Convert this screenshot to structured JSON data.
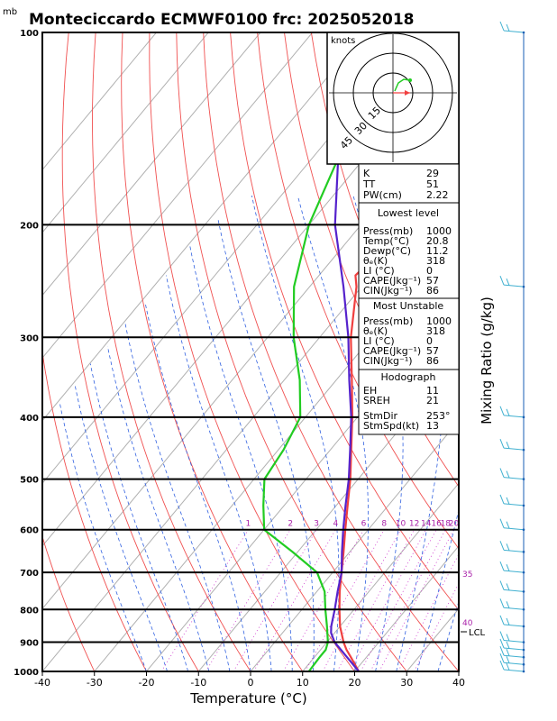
{
  "chart_data": {
    "type": "line",
    "title": "Monteciccardo ECMWF0100 frc: 2025052018",
    "pressure_unit": "mb",
    "xlabel": "Temperature (°C)",
    "right_label": "Mixing Ratio (g/kg)",
    "xlim": [
      -40,
      40
    ],
    "ylim": [
      1000,
      100
    ],
    "x_ticks": [
      "-40",
      "-30",
      "-20",
      "-10",
      "0",
      "10",
      "20",
      "30",
      "40"
    ],
    "pressure_levels": [
      {
        "p": 100,
        "label": "100"
      },
      {
        "p": 200,
        "label": "200"
      },
      {
        "p": 300,
        "label": "300"
      },
      {
        "p": 400,
        "label": "400"
      },
      {
        "p": 500,
        "label": "500"
      },
      {
        "p": 600,
        "label": "600"
      },
      {
        "p": 700,
        "label": "700"
      },
      {
        "p": 800,
        "label": "800"
      },
      {
        "p": 900,
        "label": "900"
      },
      {
        "p": 1000,
        "label": "1000"
      }
    ],
    "mixing_ratio_labels": [
      "1",
      "2",
      "3",
      "4",
      "6",
      "8",
      "10",
      "12",
      "14",
      "16",
      "18",
      "20",
      "25",
      "30"
    ],
    "theta_labels": [
      "35",
      "40"
    ],
    "lcl_label": "LCL",
    "series": [
      {
        "name": "Temperature",
        "color": "#f04040",
        "points": [
          [
            1000,
            20.8
          ],
          [
            950,
            17
          ],
          [
            925,
            15
          ],
          [
            900,
            13.2
          ],
          [
            850,
            10
          ],
          [
            800,
            7.2
          ],
          [
            750,
            4.4
          ],
          [
            700,
            1.7
          ],
          [
            650,
            -1.2
          ],
          [
            600,
            -4.4
          ],
          [
            550,
            -7.8
          ],
          [
            500,
            -11.5
          ],
          [
            450,
            -16
          ],
          [
            400,
            -21
          ],
          [
            350,
            -27
          ],
          [
            300,
            -34
          ],
          [
            250,
            -41
          ],
          [
            240,
            -43
          ],
          [
            200,
            -41
          ],
          [
            175,
            -39
          ],
          [
            150,
            -37
          ],
          [
            125,
            -35
          ],
          [
            100,
            -33
          ]
        ]
      },
      {
        "name": "Dewpoint",
        "color": "#22cc22",
        "points": [
          [
            1000,
            11.2
          ],
          [
            950,
            11
          ],
          [
            925,
            11
          ],
          [
            900,
            10.2
          ],
          [
            850,
            7.5
          ],
          [
            800,
            4.5
          ],
          [
            750,
            1.5
          ],
          [
            700,
            -3
          ],
          [
            650,
            -11
          ],
          [
            600,
            -20
          ],
          [
            550,
            -24
          ],
          [
            500,
            -28
          ],
          [
            450,
            -29
          ],
          [
            400,
            -31
          ],
          [
            350,
            -37
          ],
          [
            300,
            -45
          ],
          [
            250,
            -53
          ],
          [
            200,
            -60
          ],
          [
            150,
            -66
          ],
          [
            100,
            -72
          ]
        ]
      },
      {
        "name": "Parcel",
        "color": "#5522cc",
        "points": [
          [
            1000,
            20.8
          ],
          [
            900,
            11.5
          ],
          [
            870,
            9.3
          ],
          [
            850,
            8.3
          ],
          [
            800,
            6.3
          ],
          [
            750,
            4
          ],
          [
            700,
            1.7
          ],
          [
            650,
            -1.5
          ],
          [
            600,
            -4.8
          ],
          [
            550,
            -8.2
          ],
          [
            500,
            -11.8
          ],
          [
            450,
            -16.2
          ],
          [
            400,
            -21.2
          ],
          [
            350,
            -27.5
          ],
          [
            300,
            -34.5
          ],
          [
            250,
            -43.5
          ],
          [
            200,
            -55
          ],
          [
            150,
            -67
          ],
          [
            120,
            -75
          ],
          [
            110,
            -78
          ]
        ]
      }
    ],
    "wind_barbs_pressure": [
      1000,
      975,
      950,
      925,
      900,
      850,
      800,
      750,
      700,
      650,
      600,
      550,
      500,
      450,
      400,
      250,
      100
    ]
  },
  "hodograph": {
    "label": "knots",
    "ring_labels": [
      "15",
      "30",
      "45"
    ]
  },
  "indices": {
    "k_label": "K",
    "k": "29",
    "tt_label": "TT",
    "tt": "51",
    "pw_label": "PW(cm)",
    "pw": "2.22"
  },
  "lowest_level": {
    "header": "Lowest level",
    "rows": [
      {
        "label": "Press(mb)",
        "value": "1000"
      },
      {
        "label": "Temp(°C)",
        "value": "20.8"
      },
      {
        "label": "Dewp(°C)",
        "value": "11.2"
      },
      {
        "label": "θₑ(K)",
        "value": "318"
      },
      {
        "label": "LI (°C)",
        "value": "0"
      },
      {
        "label": "CAPE(Jkg⁻¹)",
        "value": "57"
      },
      {
        "label": "CIN(Jkg⁻¹)",
        "value": "86"
      }
    ]
  },
  "most_unstable": {
    "header": "Most Unstable",
    "rows": [
      {
        "label": "Press(mb)",
        "value": "1000"
      },
      {
        "label": "θₑ(K)",
        "value": "318"
      },
      {
        "label": "LI (°C)",
        "value": "0"
      },
      {
        "label": "CAPE(Jkg⁻¹)",
        "value": "57"
      },
      {
        "label": "CIN(Jkg⁻¹)",
        "value": "86"
      }
    ]
  },
  "hodograph_box": {
    "header": "Hodograph",
    "rows": [
      {
        "label": "EH",
        "value": "11"
      },
      {
        "label": "SREH",
        "value": "21"
      },
      {
        "label": "StmDir",
        "value": "253°"
      },
      {
        "label": "StmSpd(kt)",
        "value": "13"
      }
    ]
  }
}
